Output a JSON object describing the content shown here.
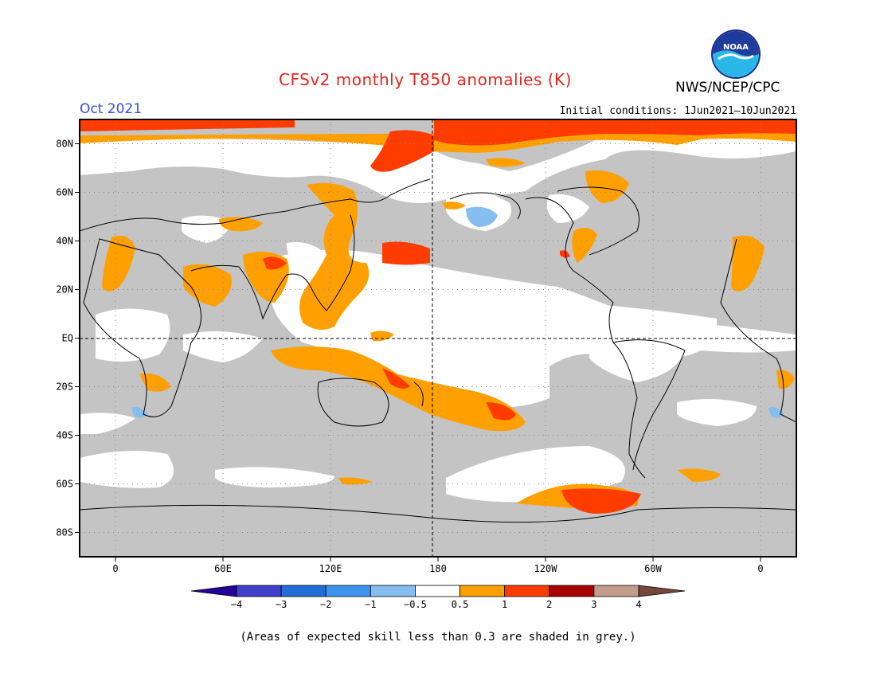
{
  "header": {
    "title": "CFSv2 monthly T850 anomalies (K)",
    "agency": "NWS/NCEP/CPC",
    "valid_date": "Oct 2021",
    "initial_conditions": "Initial conditions: 1Jun2021–10Jun2021",
    "logo_text": "NOAA"
  },
  "map": {
    "projection": "cylindrical equidistant",
    "lon_range": [
      -20,
      380
    ],
    "lat_range": [
      -90,
      90
    ],
    "lat_ticks": [
      {
        "lat": 80,
        "label": "80N"
      },
      {
        "lat": 60,
        "label": "60N"
      },
      {
        "lat": 40,
        "label": "40N"
      },
      {
        "lat": 20,
        "label": "20N"
      },
      {
        "lat": 0,
        "label": "EQ"
      },
      {
        "lat": -20,
        "label": "20S"
      },
      {
        "lat": -40,
        "label": "40S"
      },
      {
        "lat": -60,
        "label": "60S"
      },
      {
        "lat": -80,
        "label": "80S"
      }
    ],
    "lon_ticks": [
      {
        "lon": 0,
        "label": "0"
      },
      {
        "lon": 60,
        "label": "60E"
      },
      {
        "lon": 120,
        "label": "120E"
      },
      {
        "lon": 180,
        "label": "180"
      },
      {
        "lon": 240,
        "label": "120W"
      },
      {
        "lon": 300,
        "label": "60W"
      },
      {
        "lon": 360,
        "label": "0"
      }
    ],
    "colors": {
      "grey_low_skill": "#c4c4c4",
      "near_zero": "#ffffff",
      "ocean_background": "#ffffff",
      "coast": "#000000"
    },
    "anomaly_regions": [
      {
        "name": "arctic-warm",
        "level": "1 to 2"
      },
      {
        "name": "arctic-edge-warm",
        "level": "0.5 to 1"
      },
      {
        "name": "n-africa-warm",
        "level": "0.5 to 1"
      },
      {
        "name": "middle-east-warm",
        "level": "0.5 to 1"
      },
      {
        "name": "india-warm",
        "level": "0.5 to 1"
      },
      {
        "name": "tibet-warm",
        "level": "1 to 2"
      },
      {
        "name": "east-asia-warm",
        "level": "0.5 to 1"
      },
      {
        "name": "nw-pacific-warm",
        "level": "1 to 2"
      },
      {
        "name": "siberia-warm",
        "level": "0.5 to 1"
      },
      {
        "name": "maritime-continent-warm",
        "level": "0.5 to 1"
      },
      {
        "name": "south-pacific-warm",
        "level": "0.5 to 1"
      },
      {
        "name": "south-pacific-core",
        "level": "1 to 2"
      },
      {
        "name": "antarctic-peninsula-warm",
        "level": "1 to 2"
      },
      {
        "name": "hudson-bay-warm",
        "level": "0.5 to 1"
      },
      {
        "name": "east-us-warm",
        "level": "0.5 to 1"
      },
      {
        "name": "alaska-cool",
        "level": "-1 to -0.5"
      },
      {
        "name": "s-africa-cool",
        "level": "-1 to -0.5"
      }
    ]
  },
  "colorbar": {
    "levels": [
      "-4",
      "-3",
      "-2",
      "-1",
      "-0.5",
      "0.5",
      "1",
      "2",
      "3",
      "4"
    ],
    "colors": [
      "#24009a",
      "#3f3fcc",
      "#1f6fd6",
      "#3d95ee",
      "#86beef",
      "#ffffff",
      "#ffa000",
      "#ff3c00",
      "#a80000",
      "#c49c8c",
      "#76493a"
    ]
  },
  "footnote": "(Areas of expected skill less than 0.3 are shaded in grey.)"
}
